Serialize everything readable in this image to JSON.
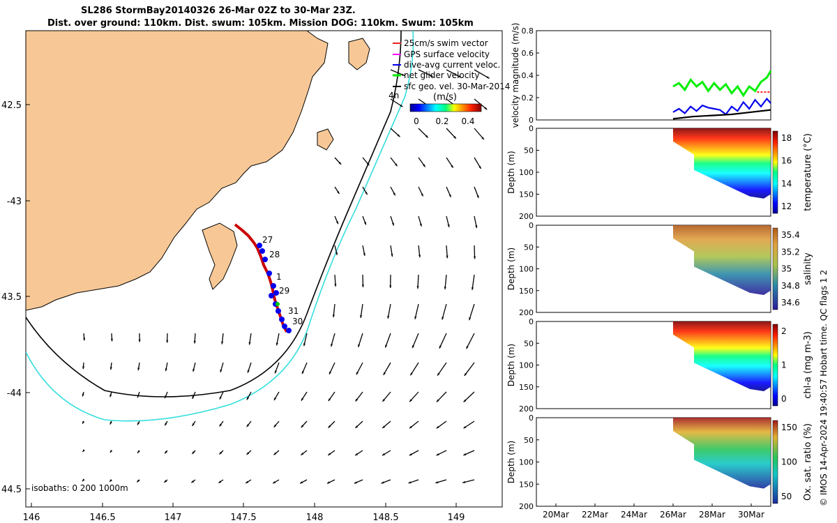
{
  "title": {
    "line1": "SL286 StormBay20140326 26-Mar 02Z to 30-Mar 23Z.",
    "line2": "Dist. over ground: 110km. Dist. swum: 105km. Mission DOG: 110km. Swum: 105km"
  },
  "colors": {
    "land": "#f7c896",
    "coast": "#000000",
    "isobath200": "#000000",
    "isobath1000": "#33dddd",
    "glider_track": "#cc0000",
    "dive_markers": "#0000ee",
    "net_velocity": "#00ee00",
    "dive_avg_velocity": "#0000ee",
    "geo_velocity": "#000000",
    "gps_velocity": "#ff00ff"
  },
  "map": {
    "lon_ticks": [
      "146",
      "146.5",
      "147",
      "147.5",
      "148",
      "148.5",
      "149"
    ],
    "lat_ticks": [
      "42.5",
      "-43",
      "43.5",
      "-44",
      "44.5"
    ],
    "legend": [
      {
        "label": "25cm/s swim vector",
        "icon": "red-arrow"
      },
      {
        "label": "GPS surface velocity",
        "icon": "magenta-arrow"
      },
      {
        "label": "dive-avg current veloc.",
        "icon": "blue-line"
      },
      {
        "label": "net glider velocity",
        "icon": "green-line"
      },
      {
        "label": "sfc geo. vel. 30-Mar-2014",
        "icon": "black-line"
      }
    ],
    "age_label": "4h",
    "colorbar_unit": "(m/s)",
    "colorbar_ticks": [
      "0",
      "0.2",
      "0.4"
    ],
    "isobath_label": "isobaths: 0   200  1000m",
    "day_labels": [
      "27",
      "28",
      "1",
      "29",
      "31",
      "30"
    ]
  },
  "chart_data": [
    {
      "type": "line",
      "title": "",
      "ylabel": "velocity magnitude (m/s)",
      "y_ticks": [
        "0",
        "0.2",
        "0.4",
        "0.6",
        "0.8"
      ],
      "ylim": [
        0,
        0.8
      ],
      "x_day_range": [
        19,
        31
      ],
      "series": [
        {
          "color": "#00ee00",
          "x": [
            26.0,
            26.3,
            26.6,
            26.9,
            27.2,
            27.5,
            27.8,
            28.1,
            28.4,
            28.7,
            29.0,
            29.3,
            29.6,
            29.9,
            30.2,
            30.5,
            30.8,
            31.0
          ],
          "values": [
            0.3,
            0.33,
            0.27,
            0.36,
            0.3,
            0.34,
            0.26,
            0.33,
            0.27,
            0.32,
            0.24,
            0.3,
            0.22,
            0.3,
            0.26,
            0.34,
            0.38,
            0.44
          ]
        },
        {
          "color": "#0000ee",
          "x": [
            26.0,
            26.3,
            26.6,
            26.9,
            27.2,
            27.5,
            27.8,
            28.1,
            28.4,
            28.7,
            29.0,
            29.3,
            29.6,
            29.9,
            30.2,
            30.5,
            30.8,
            31.0
          ],
          "values": [
            0.07,
            0.1,
            0.06,
            0.12,
            0.08,
            0.13,
            0.11,
            0.1,
            0.09,
            0.05,
            0.12,
            0.08,
            0.16,
            0.1,
            0.18,
            0.12,
            0.19,
            0.15
          ]
        },
        {
          "color": "#000000",
          "x": [
            26.0,
            27.0,
            28.0,
            29.0,
            30.0,
            31.0
          ],
          "values": [
            0.01,
            0.03,
            0.04,
            0.05,
            0.07,
            0.09
          ]
        },
        {
          "color": "#ff3333",
          "x": [
            30.3,
            31.0
          ],
          "values": [
            0.25,
            0.25
          ]
        }
      ]
    },
    {
      "type": "heatmap",
      "ylabel": "Depth (m)",
      "colorbar_label": "temperature (°C)",
      "colorbar_ticks": [
        "18",
        "16",
        "14",
        "12"
      ],
      "y_ticks": [
        "0",
        "50",
        "100",
        "150",
        "200"
      ],
      "ylim": [
        0,
        200
      ],
      "data_day_range": [
        26,
        31
      ]
    },
    {
      "type": "heatmap",
      "ylabel": "Depth (m)",
      "colorbar_label": "salinity",
      "colorbar_ticks": [
        "35.4",
        "35.2",
        "35",
        "34.8",
        "34.6"
      ],
      "y_ticks": [
        "0",
        "50",
        "100",
        "150",
        "200"
      ],
      "ylim": [
        0,
        200
      ],
      "data_day_range": [
        26,
        31
      ]
    },
    {
      "type": "heatmap",
      "ylabel": "Depth (m)",
      "colorbar_label": "chl-a (mg m-3)",
      "colorbar_ticks": [
        "2",
        "1",
        "0"
      ],
      "y_ticks": [
        "0",
        "50",
        "100",
        "150",
        "200"
      ],
      "ylim": [
        0,
        200
      ],
      "data_day_range": [
        26,
        31
      ]
    },
    {
      "type": "heatmap",
      "ylabel": "Depth (m)",
      "colorbar_label": "Ox. sat. ratio (%)",
      "colorbar_ticks": [
        "150",
        "100",
        "50"
      ],
      "y_ticks": [
        "0",
        "50",
        "100",
        "150",
        "200"
      ],
      "ylim": [
        0,
        200
      ],
      "data_day_range": [
        26,
        31
      ],
      "x_ticks": [
        "20Mar",
        "22Mar",
        "24Mar",
        "26Mar",
        "28Mar",
        "30Mar"
      ]
    }
  ],
  "footnote": "© IMOS 14-Apr-2024 19:40:57 Hobart time. QC flags 1  2"
}
